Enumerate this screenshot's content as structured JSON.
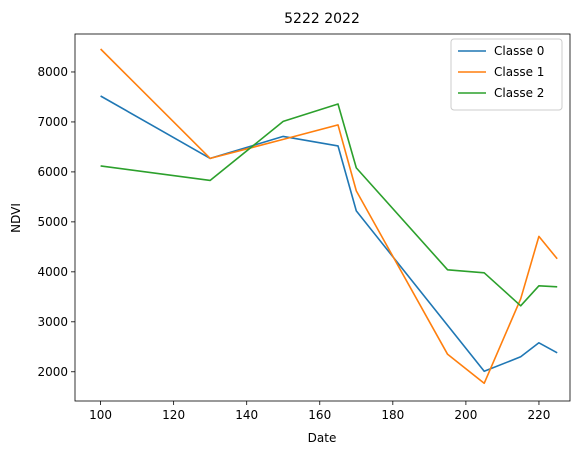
{
  "chart_data": {
    "type": "line",
    "title": "5222 2022",
    "xlabel": "Date",
    "ylabel": "NDVI",
    "xlim": [
      93,
      228.5
    ],
    "ylim": [
      1415,
      8760
    ],
    "xticks": [
      100,
      120,
      140,
      160,
      180,
      200,
      220
    ],
    "yticks": [
      2000,
      3000,
      4000,
      5000,
      6000,
      7000,
      8000
    ],
    "grid": false,
    "legend_position": "top-right",
    "series": [
      {
        "name": "Classe 0",
        "color": "#1f77b4",
        "x": [
          100,
          130,
          150,
          165,
          170,
          205,
          215,
          220,
          225
        ],
        "y": [
          7520,
          6270,
          6710,
          6520,
          5220,
          2010,
          2300,
          2580,
          2380
        ]
      },
      {
        "name": "Classe 1",
        "color": "#ff7f0e",
        "x": [
          100,
          130,
          150,
          165,
          170,
          195,
          205,
          215,
          220,
          225
        ],
        "y": [
          8460,
          6270,
          6650,
          6940,
          5620,
          2350,
          1770,
          3460,
          4710,
          4260
        ]
      },
      {
        "name": "Classe 2",
        "color": "#2ca02c",
        "x": [
          100,
          130,
          150,
          165,
          170,
          195,
          205,
          215,
          220,
          225
        ],
        "y": [
          6120,
          5830,
          7010,
          7360,
          6080,
          4040,
          3980,
          3320,
          3720,
          3700
        ]
      }
    ]
  }
}
